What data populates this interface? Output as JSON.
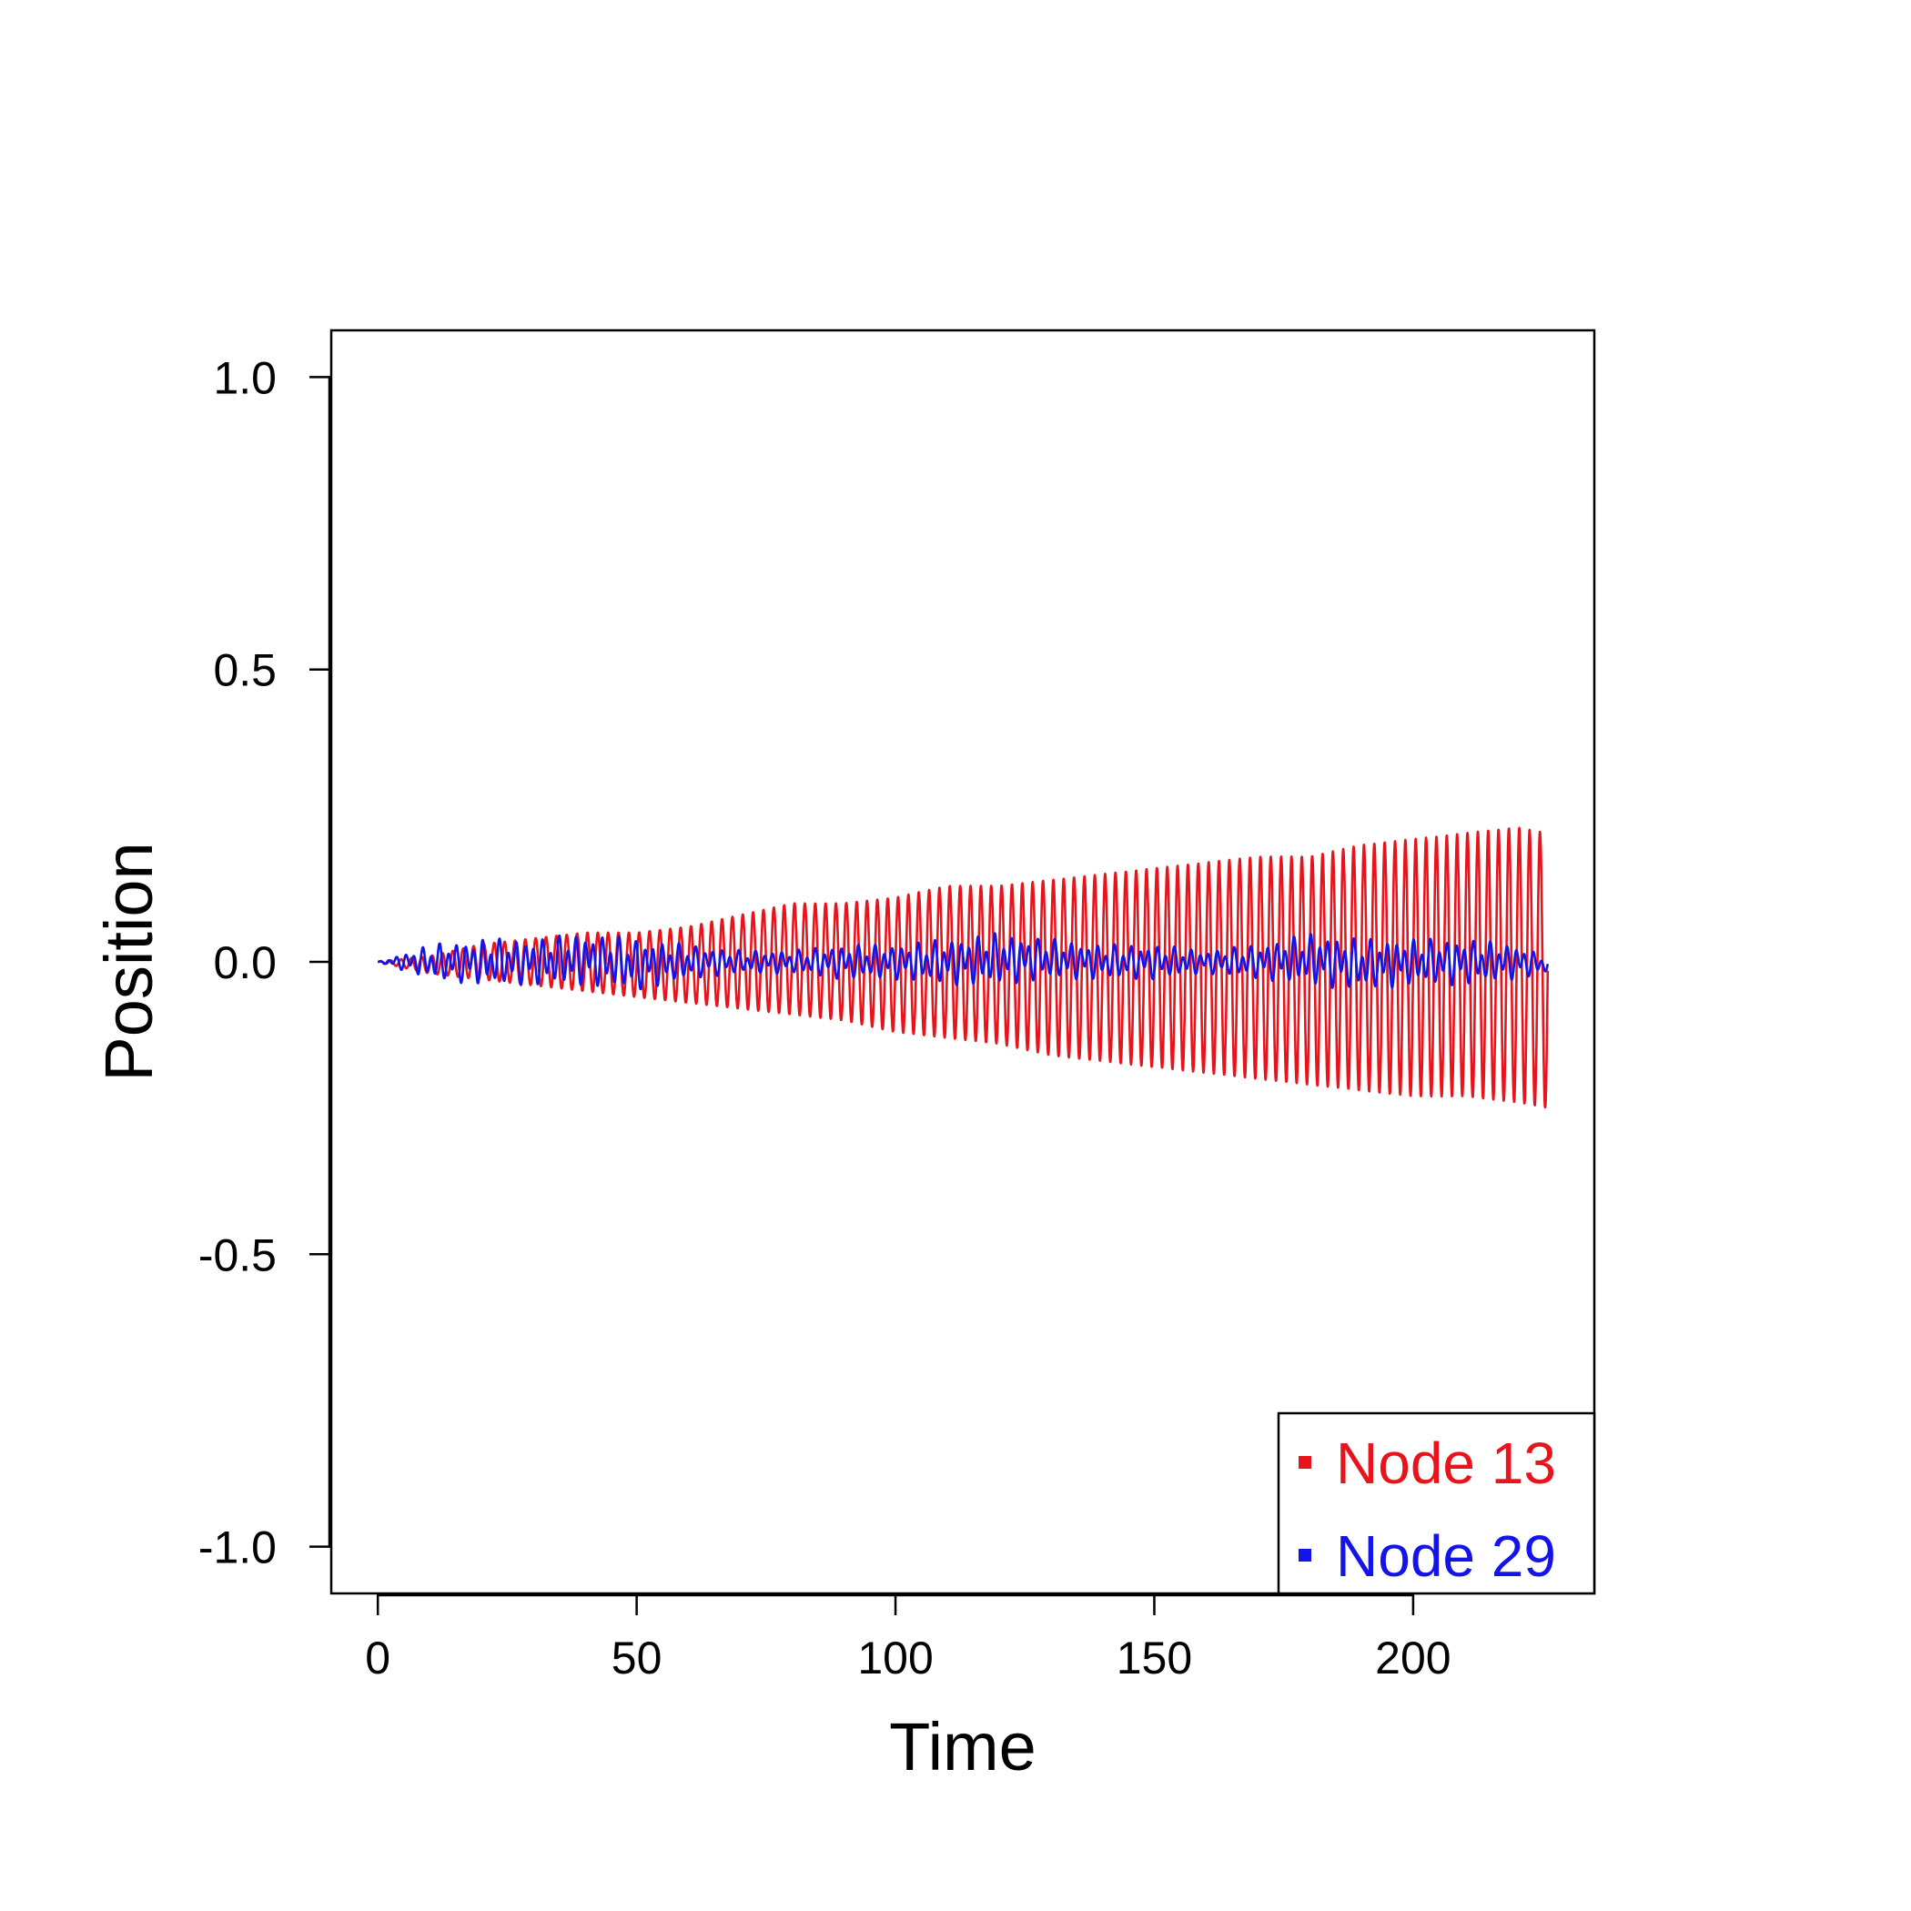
{
  "chart_data": {
    "type": "line",
    "title": "",
    "xlabel": "Time",
    "ylabel": "Position",
    "xlim": [
      -9,
      235
    ],
    "ylim": [
      -1.08,
      1.08
    ],
    "xticks": [
      0,
      50,
      100,
      150,
      200
    ],
    "xtick_labels": [
      "0",
      "50",
      "100",
      "150",
      "200"
    ],
    "yticks": [
      1.0,
      0.5,
      0.0,
      -0.5,
      -1.0
    ],
    "ytick_labels": [
      "1.0",
      "0.5",
      "0.0",
      "-0.5",
      "-1.0"
    ],
    "grid": false,
    "legend_position": "bottom-right",
    "series": [
      {
        "name": "Node 13",
        "color": "#e8141c",
        "x": [
          0,
          10,
          20,
          30,
          40,
          50,
          60,
          70,
          80,
          90,
          100,
          110,
          120,
          130,
          140,
          150,
          160,
          170,
          180,
          190,
          200,
          210,
          220,
          226
        ],
        "upper_envelope": [
          0.0,
          0.01,
          0.03,
          0.04,
          0.05,
          0.05,
          0.06,
          0.08,
          0.1,
          0.1,
          0.11,
          0.13,
          0.13,
          0.14,
          0.15,
          0.16,
          0.17,
          0.18,
          0.18,
          0.2,
          0.21,
          0.22,
          0.23,
          0.22
        ],
        "lower_envelope": [
          0.0,
          -0.02,
          -0.03,
          -0.04,
          -0.05,
          -0.06,
          -0.07,
          -0.08,
          -0.09,
          -0.1,
          -0.12,
          -0.13,
          -0.14,
          -0.16,
          -0.17,
          -0.18,
          -0.19,
          -0.2,
          -0.21,
          -0.22,
          -0.23,
          -0.23,
          -0.24,
          -0.25
        ]
      },
      {
        "name": "Node 29",
        "color": "#1414e8",
        "x": [
          0,
          10,
          20,
          30,
          40,
          50,
          60,
          70,
          80,
          90,
          100,
          110,
          120,
          130,
          140,
          150,
          160,
          170,
          180,
          190,
          200,
          210,
          220,
          226
        ],
        "upper_envelope": [
          0.0,
          0.03,
          0.04,
          0.04,
          0.05,
          0.04,
          0.03,
          0.02,
          0.02,
          0.03,
          0.03,
          0.04,
          0.05,
          0.04,
          0.03,
          0.03,
          0.02,
          0.03,
          0.05,
          0.04,
          0.04,
          0.04,
          0.03,
          0.01
        ],
        "lower_envelope": [
          0.0,
          -0.03,
          -0.04,
          -0.04,
          -0.04,
          -0.05,
          -0.03,
          -0.02,
          -0.02,
          -0.03,
          -0.03,
          -0.04,
          -0.04,
          -0.03,
          -0.03,
          -0.03,
          -0.02,
          -0.03,
          -0.04,
          -0.05,
          -0.04,
          -0.04,
          -0.03,
          -0.02
        ]
      }
    ]
  }
}
